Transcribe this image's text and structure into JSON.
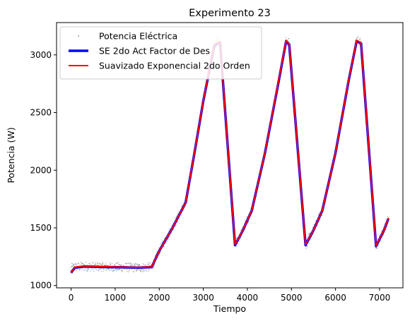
{
  "chart_data": {
    "type": "line",
    "title": "Experimento 23",
    "xlabel": "Tiempo",
    "ylabel": "Potencia (W)",
    "xlim": [
      -330,
      7530
    ],
    "ylim": [
      980,
      3280
    ],
    "xticks": [
      0,
      1000,
      2000,
      3000,
      4000,
      5000,
      6000,
      7000
    ],
    "yticks": [
      1000,
      1500,
      2000,
      2500,
      3000
    ],
    "grid": false,
    "legend_position": "top-left",
    "series": [
      {
        "name": "Potencia Eléctrica",
        "style": "scatter",
        "color": "#7f7f7f",
        "noise_amplitude": 40,
        "x": [
          0,
          80,
          300,
          600,
          900,
          1200,
          1500,
          1830,
          2000,
          2300,
          2600,
          2800,
          3000,
          3250,
          3380,
          3720,
          3900,
          4100,
          4400,
          4700,
          4880,
          4950,
          5320,
          5500,
          5700,
          6000,
          6300,
          6480,
          6580,
          6920,
          7100,
          7200
        ],
        "values": [
          1150,
          1160,
          1165,
          1162,
          1160,
          1158,
          1155,
          1160,
          1300,
          1500,
          1720,
          2150,
          2600,
          3080,
          3120,
          1350,
          1480,
          1650,
          2150,
          2750,
          3130,
          3100,
          1350,
          1480,
          1650,
          2150,
          2780,
          3130,
          3110,
          1340,
          1480,
          1580
        ]
      },
      {
        "name": "SE 2do Act Factor de Des",
        "style": "line",
        "color": "#0000ff",
        "x": [
          0,
          80,
          300,
          600,
          900,
          1200,
          1500,
          1830,
          2000,
          2300,
          2600,
          2800,
          3000,
          3250,
          3380,
          3720,
          3900,
          4100,
          4400,
          4700,
          4880,
          4950,
          5320,
          5500,
          5700,
          6000,
          6300,
          6480,
          6580,
          6920,
          7100,
          7200
        ],
        "values": [
          1110,
          1155,
          1165,
          1162,
          1160,
          1158,
          1155,
          1160,
          1300,
          1500,
          1720,
          2150,
          2600,
          3080,
          3110,
          1350,
          1480,
          1650,
          2150,
          2750,
          3120,
          3090,
          1350,
          1480,
          1650,
          2150,
          2780,
          3120,
          3100,
          1340,
          1480,
          1580
        ]
      },
      {
        "name": "Suavizado Exponencial 2do Orden",
        "style": "line",
        "color": "#ff0000",
        "x": [
          0,
          80,
          300,
          600,
          900,
          1200,
          1500,
          1830,
          2000,
          2300,
          2600,
          2800,
          3000,
          3250,
          3380,
          3720,
          3900,
          4100,
          4400,
          4700,
          4880,
          4950,
          5320,
          5500,
          5700,
          6000,
          6300,
          6480,
          6580,
          6920,
          7100,
          7200
        ],
        "values": [
          1110,
          1160,
          1168,
          1165,
          1162,
          1160,
          1157,
          1162,
          1300,
          1500,
          1720,
          2150,
          2600,
          3090,
          3115,
          1355,
          1480,
          1650,
          2150,
          2760,
          3125,
          3095,
          1355,
          1480,
          1650,
          2150,
          2785,
          3125,
          3105,
          1345,
          1480,
          1585
        ]
      }
    ]
  }
}
